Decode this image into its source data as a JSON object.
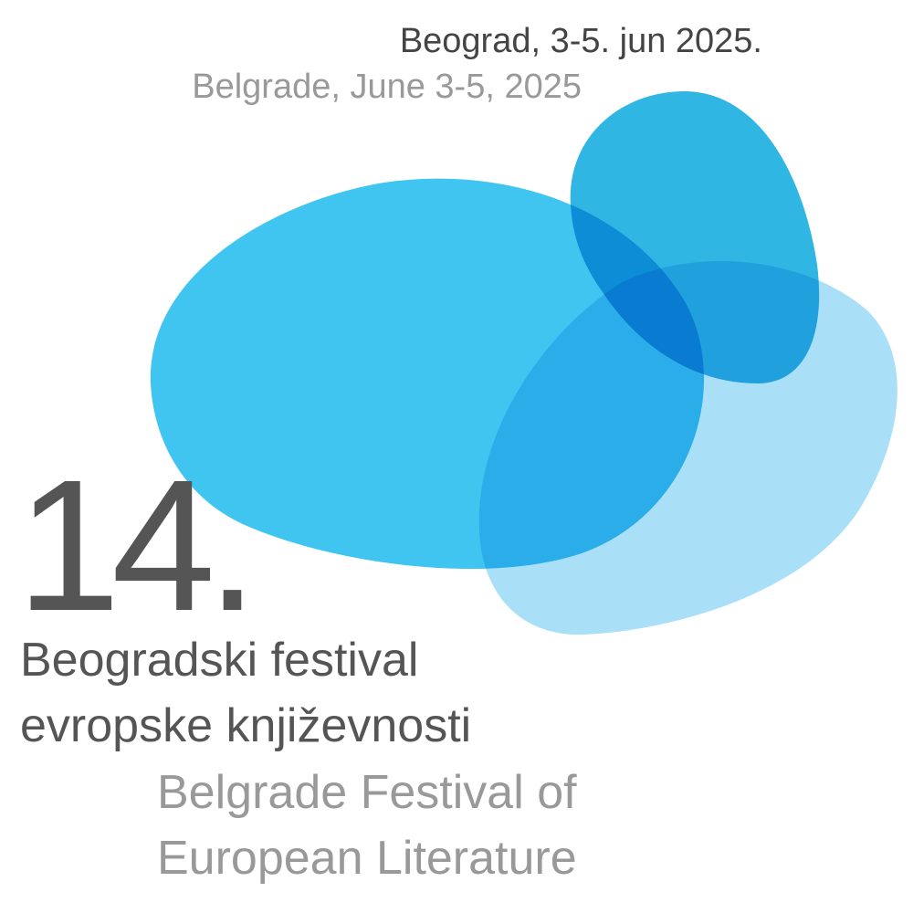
{
  "date": {
    "serbian": "Beograd, 3-5. jun 2025.",
    "english": "Belgrade, June 3-5, 2025"
  },
  "edition": "14.",
  "title": {
    "serbian": [
      "Beogradski festival",
      "evropske književnosti"
    ],
    "english": [
      "Belgrade Festival of",
      "European Literature"
    ]
  }
}
